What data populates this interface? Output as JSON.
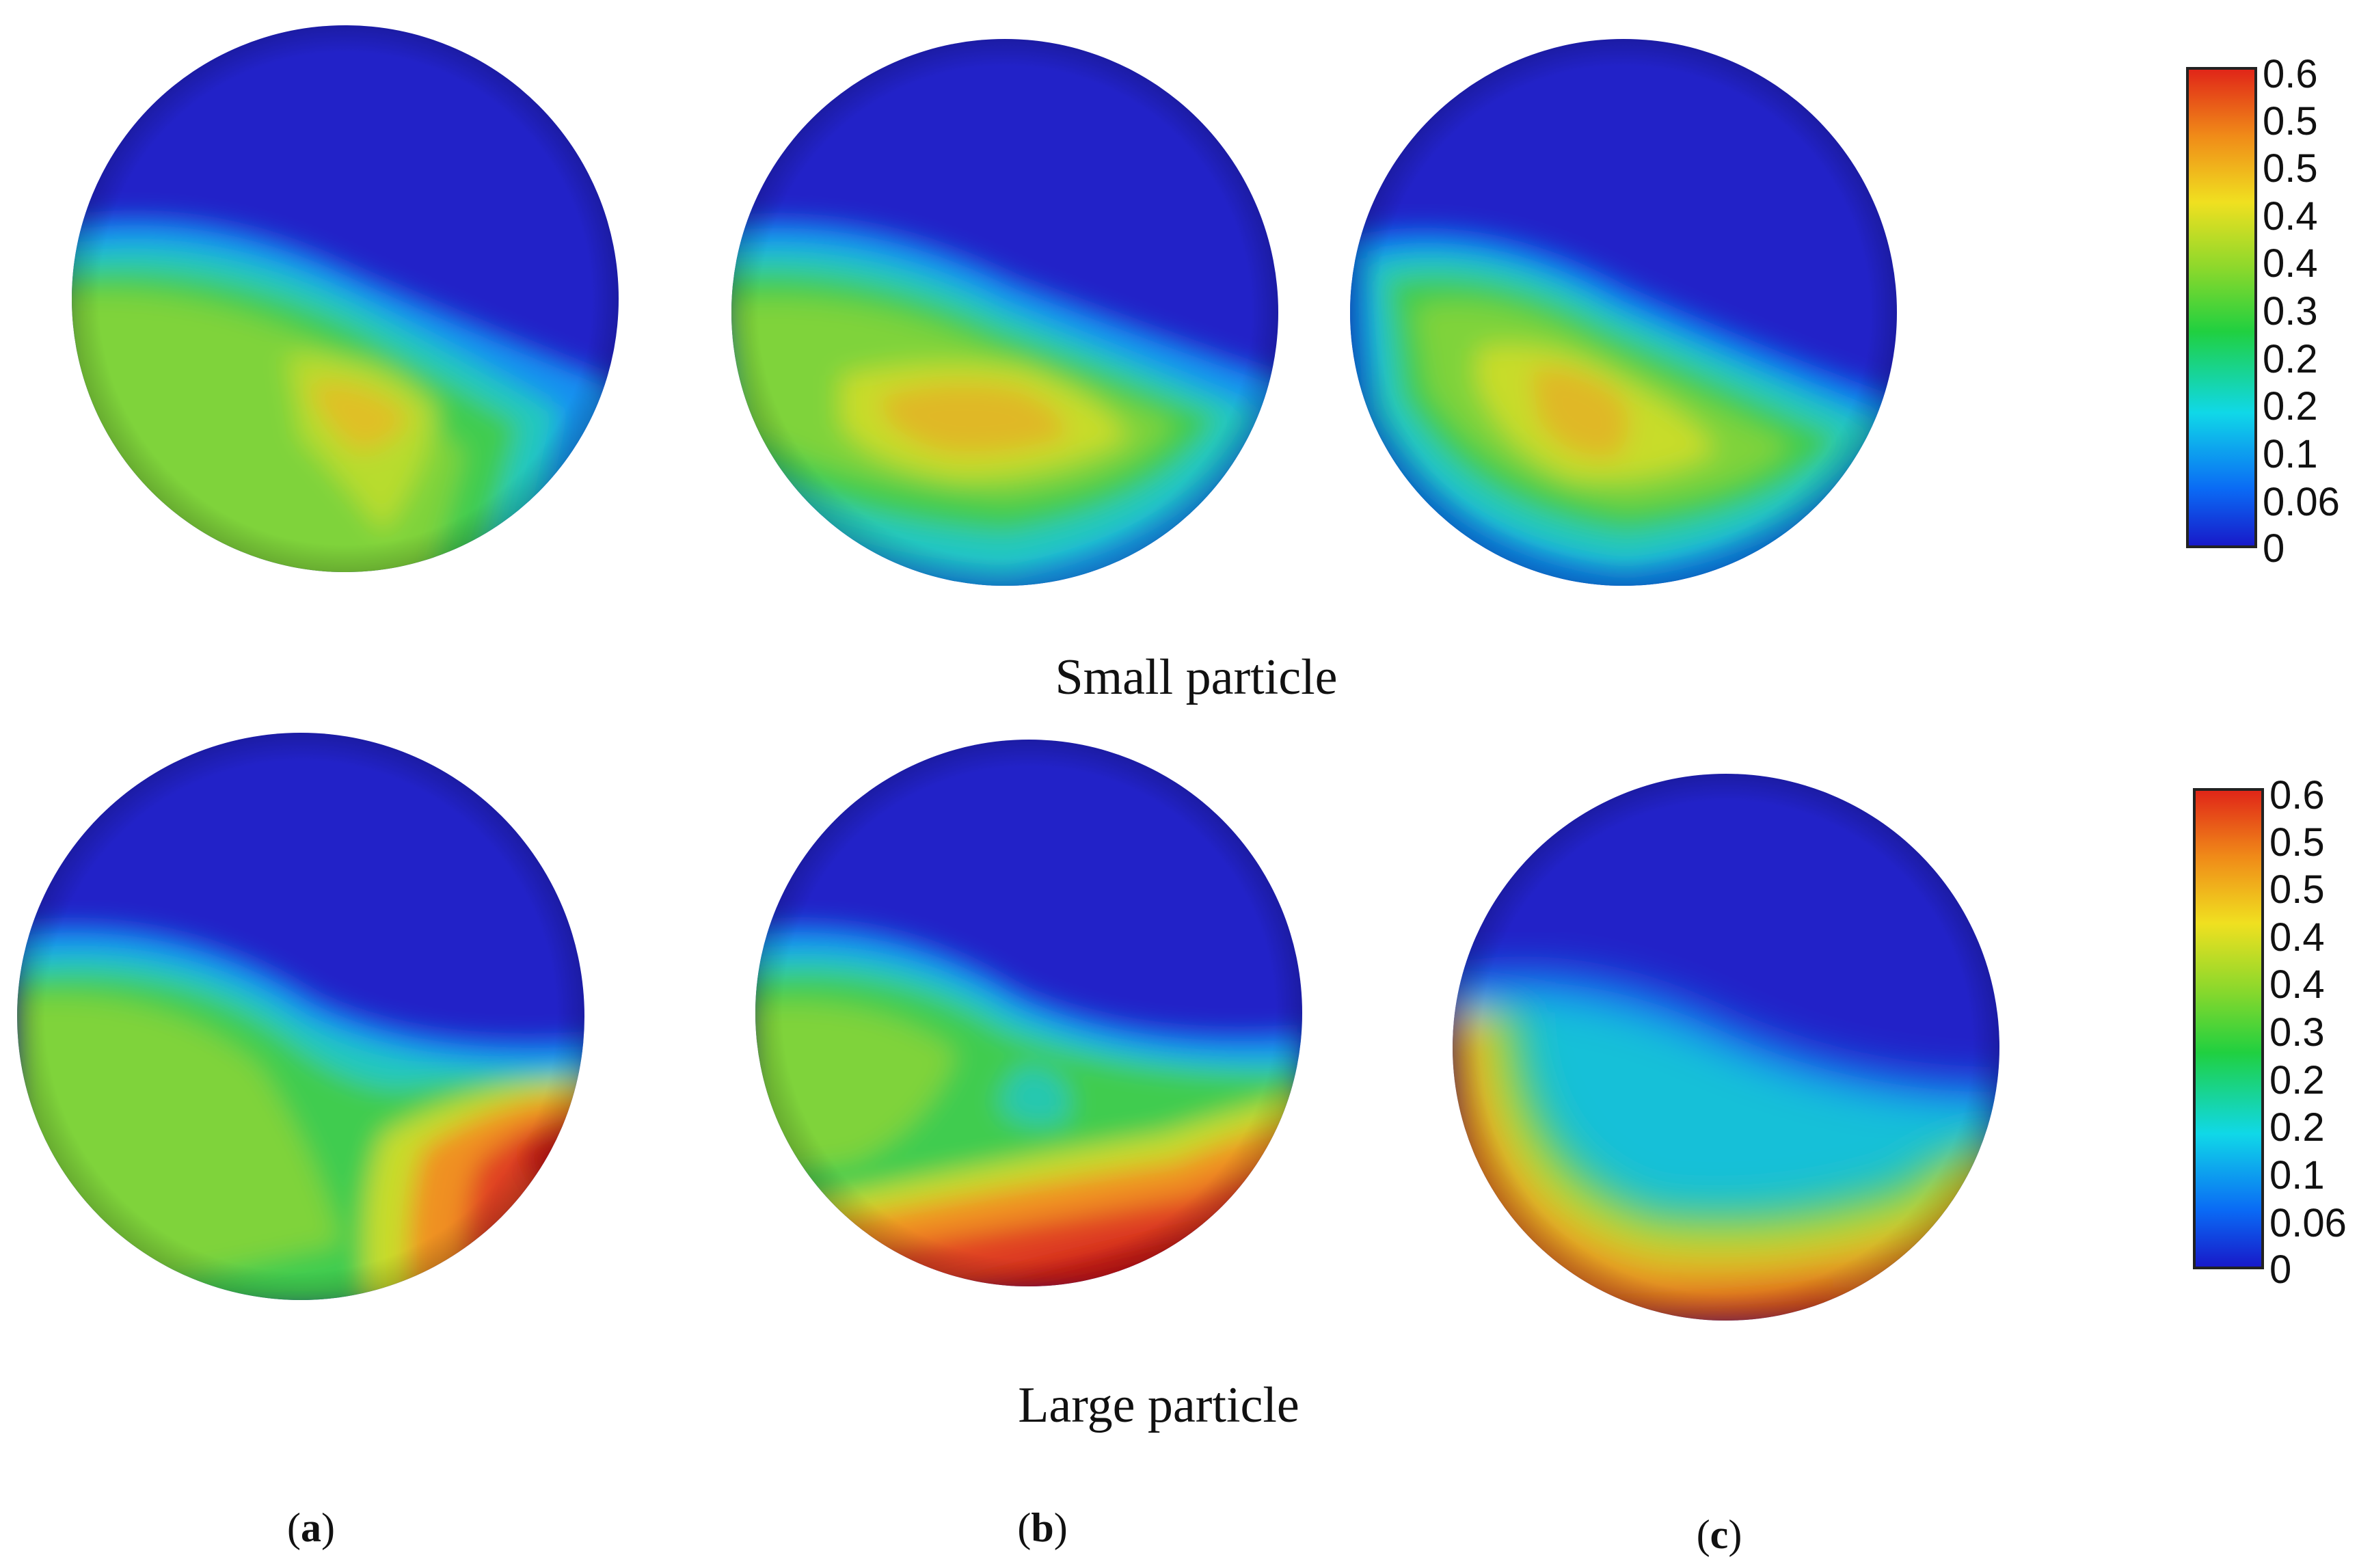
{
  "row_labels": {
    "top": "Small particle",
    "bottom": "Large particle"
  },
  "column_labels": [
    "a",
    "b",
    "c"
  ],
  "colorbar_ticks": [
    "0.6",
    "0.5",
    "0.5",
    "0.4",
    "0.4",
    "0.3",
    "0.2",
    "0.2",
    "0.1",
    "0.06",
    "0"
  ],
  "colormap": [
    "#1f1fd0",
    "#1060f0",
    "#10c8e0",
    "#28d070",
    "#78d838",
    "#d8e030",
    "#f0a020",
    "#e04020",
    "#d01818"
  ],
  "panels": [
    {
      "row": "top",
      "col": "a",
      "max_level": 0.45
    },
    {
      "row": "top",
      "col": "b",
      "max_level": 0.45
    },
    {
      "row": "top",
      "col": "c",
      "max_level": 0.45
    },
    {
      "row": "bottom",
      "col": "a",
      "max_level": 0.6
    },
    {
      "row": "bottom",
      "col": "b",
      "max_level": 0.6
    },
    {
      "row": "bottom",
      "col": "c",
      "max_level": 0.55
    }
  ]
}
